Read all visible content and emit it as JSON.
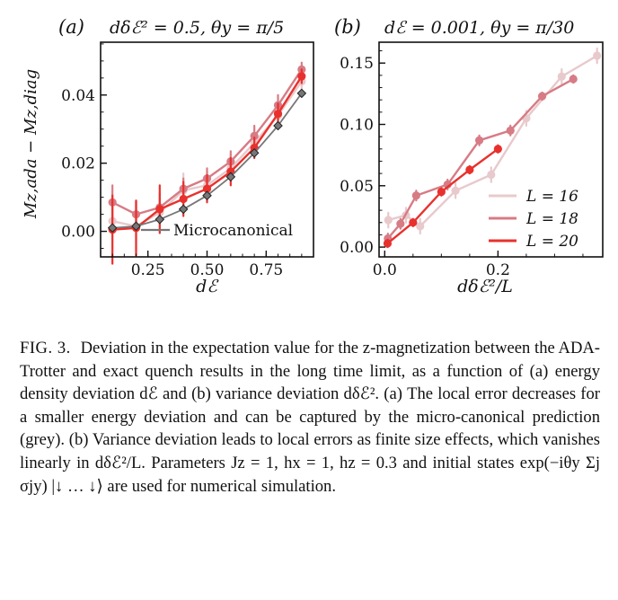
{
  "figure": {
    "panels": [
      {
        "label": "(a)",
        "title": "dδℰ² = 0.5, θy = π/5",
        "xlabel": "dℰ",
        "ylabel": "Mz,ada − Mz,diag",
        "xlim": [
          0.05,
          0.95
        ],
        "ylim": [
          -0.0075,
          0.0555
        ],
        "xticks": [
          0.25,
          0.5,
          0.75
        ],
        "xtick_labels": [
          "0.25",
          "0.50",
          "0.75"
        ],
        "yticks": [
          0.0,
          0.02,
          0.04
        ],
        "ytick_labels": [
          "0.00",
          "0.02",
          "0.04"
        ],
        "legend_label": "Microcanonical"
      },
      {
        "label": "(b)",
        "title": "dℰ = 0.001, θy = π/30",
        "xlabel": "dδℰ²/L",
        "xlim": [
          -0.01,
          0.385
        ],
        "ylim": [
          -0.008,
          0.167
        ],
        "xticks": [
          0.0,
          0.2
        ],
        "xtick_labels": [
          "0.0",
          "0.2"
        ],
        "yticks": [
          0.0,
          0.05,
          0.1,
          0.15
        ],
        "ytick_labels": [
          "0.00",
          "0.05",
          "0.10",
          "0.15"
        ],
        "legend_labels": [
          "L = 16",
          "L = 18",
          "L = 20"
        ]
      }
    ]
  },
  "chart_data": [
    {
      "type": "line",
      "title": "(a) dδℰ² = 0.5, θy = π/5",
      "xlabel": "dℰ",
      "ylabel": "Mz,ada − Mz,diag",
      "xlim": [
        0.05,
        0.95
      ],
      "ylim": [
        -0.0075,
        0.0555
      ],
      "legend": "lower-right",
      "series": [
        {
          "name": "L = 16",
          "color": "#e8c9cc",
          "x": [
            0.1,
            0.2,
            0.3,
            0.4,
            0.5,
            0.6,
            0.7,
            0.8,
            0.9
          ],
          "y": [
            0.003,
            0.0015,
            0.0055,
            0.012,
            0.0135,
            0.0185,
            0.026,
            0.034,
            0.044
          ],
          "err": [
            0.008,
            0.007,
            0.006,
            0.005,
            0.004,
            0.004,
            0.004,
            0.004,
            0.003
          ]
        },
        {
          "name": "L = 18",
          "color": "#d77b85",
          "x": [
            0.1,
            0.2,
            0.3,
            0.4,
            0.5,
            0.6,
            0.7,
            0.8,
            0.9
          ],
          "y": [
            0.0085,
            0.005,
            0.007,
            0.0125,
            0.0155,
            0.0205,
            0.028,
            0.037,
            0.0475
          ],
          "err": [
            0.005,
            0.004,
            0.004,
            0.003,
            0.003,
            0.003,
            0.003,
            0.003,
            0.002
          ]
        },
        {
          "name": "L = 20",
          "color": "#e8312d",
          "x": [
            0.1,
            0.2,
            0.3,
            0.4,
            0.5,
            0.6,
            0.7,
            0.8,
            0.9
          ],
          "y": [
            0.0005,
            0.001,
            0.0065,
            0.0095,
            0.0125,
            0.0175,
            0.0245,
            0.0345,
            0.0455
          ],
          "err": [
            0.01,
            0.008,
            0.007,
            0.005,
            0.004,
            0.004,
            0.003,
            0.003,
            0.002
          ]
        },
        {
          "name": "Microcanonical",
          "color": "#777777",
          "marker": "diamond",
          "x": [
            0.1,
            0.2,
            0.3,
            0.4,
            0.5,
            0.6,
            0.7,
            0.8,
            0.9
          ],
          "y": [
            0.001,
            0.0015,
            0.0035,
            0.0065,
            0.0105,
            0.016,
            0.023,
            0.031,
            0.0405
          ]
        }
      ]
    },
    {
      "type": "line",
      "title": "(b) dℰ = 0.001, θy = π/30",
      "xlabel": "dδℰ²/L",
      "ylabel": "",
      "xlim": [
        -0.01,
        0.385
      ],
      "ylim": [
        -0.008,
        0.167
      ],
      "legend": "lower-right",
      "series": [
        {
          "name": "L = 16",
          "color": "#e8c9cc",
          "x": [
            0.0063,
            0.0375,
            0.0625,
            0.125,
            0.188,
            0.25,
            0.3125,
            0.375
          ],
          "y": [
            0.022,
            0.026,
            0.017,
            0.046,
            0.059,
            0.105,
            0.139,
            0.156
          ],
          "err": [
            0.006,
            0.006,
            0.006,
            0.006,
            0.006,
            0.006,
            0.006,
            0.006
          ]
        },
        {
          "name": "L = 18",
          "color": "#d77b85",
          "x": [
            0.0056,
            0.0278,
            0.0556,
            0.111,
            0.167,
            0.222,
            0.278,
            0.333
          ],
          "y": [
            0.007,
            0.019,
            0.042,
            0.051,
            0.087,
            0.095,
            0.123,
            0.137
          ],
          "err": [
            0.004,
            0.004,
            0.004,
            0.004,
            0.004,
            0.004,
            0.003,
            0.003
          ]
        },
        {
          "name": "L = 20",
          "color": "#e8312d",
          "x": [
            0.005,
            0.05,
            0.1,
            0.15,
            0.2
          ],
          "y": [
            0.003,
            0.02,
            0.045,
            0.063,
            0.08
          ],
          "err": [
            0.003,
            0.003,
            0.003,
            0.003,
            0.003
          ]
        }
      ]
    }
  ],
  "caption": {
    "label": "FIG. 3.",
    "text": "Deviation in the expectation value for the z-magnetization between the ADA-Trotter and exact quench results in the long time limit, as a function of (a) energy density deviation dℰ and (b) variance deviation dδℰ². (a) The local error decreases for a smaller energy deviation and can be captured by the micro-canonical prediction (grey). (b) Variance deviation leads to local errors as finite size effects, which vanishes linearly in dδℰ²/L. Parameters Jz = 1, hx = 1, hz = 0.3 and initial states exp(−iθy Σj σjy) |↓ … ↓⟩ are used for numerical simulation."
  }
}
